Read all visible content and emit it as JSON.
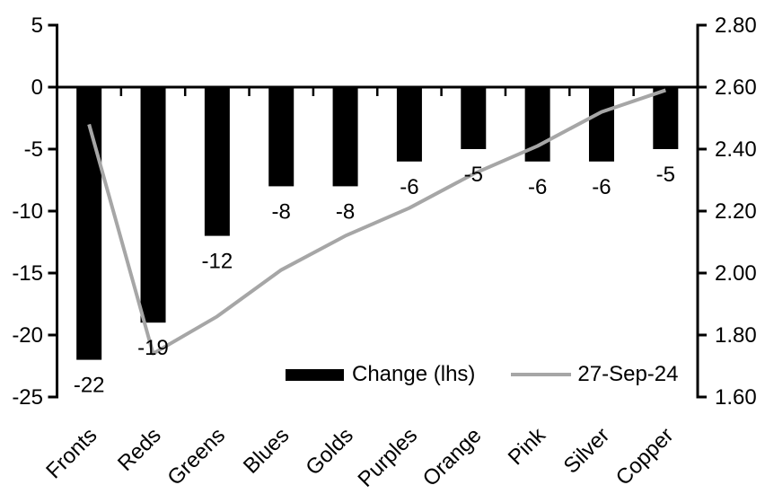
{
  "chart_data": {
    "type": "bar",
    "subtype": "bar+line combo, dual axis",
    "title": "",
    "xlabel": "",
    "ylabel": "",
    "grid": false,
    "background_color": "#ffffff",
    "axis_color": "#000000",
    "categories": [
      "Fronts",
      "Reds",
      "Greens",
      "Blues",
      "Golds",
      "Purples",
      "Orange",
      "Pink",
      "Silver",
      "Copper"
    ],
    "series": [
      {
        "name": "Change (lhs)",
        "type": "bar",
        "axis": "left",
        "color": "#000000",
        "values": [
          -22,
          -19,
          -12,
          -8,
          -8,
          -6,
          -5,
          -6,
          -6,
          -5
        ],
        "data_labels": [
          "-22",
          "-19",
          "-12",
          "-8",
          "-8",
          "-6",
          "-5",
          "-6",
          "-6",
          "-5"
        ]
      },
      {
        "name": "27-Sep-24",
        "type": "line",
        "axis": "right",
        "color": "#a6a6a6",
        "values": [
          2.48,
          1.74,
          1.86,
          2.01,
          2.12,
          2.21,
          2.32,
          2.41,
          2.52,
          2.59
        ]
      }
    ],
    "left_axis": {
      "min": -25,
      "max": 5,
      "step": 5,
      "tick_labels": [
        "5",
        "0",
        "-5",
        "-10",
        "-15",
        "-20",
        "-25"
      ]
    },
    "right_axis": {
      "min": 1.6,
      "max": 2.8,
      "step": 0.2,
      "tick_labels": [
        "2.80",
        "2.60",
        "2.40",
        "2.20",
        "2.00",
        "1.80",
        "1.60"
      ]
    },
    "legend": {
      "position": "bottom-inside",
      "entries": [
        "Change (lhs)",
        "27-Sep-24"
      ]
    }
  }
}
